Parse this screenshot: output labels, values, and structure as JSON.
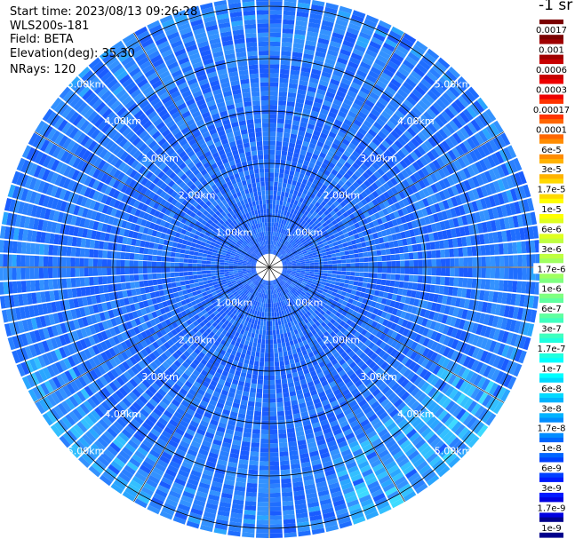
{
  "header": {
    "start_time": "Start time: 2023/08/13 09:26:28",
    "instrument": "WLS200s-181",
    "field": "Field: BETA",
    "elevation": "Elevation(deg): 35.30",
    "nrays": "NRays: 120"
  },
  "colorbar": {
    "unit": "-1 sr",
    "labels": [
      "0.0017",
      "0.001",
      "0.0006",
      "0.0003",
      "0.00017",
      "0.0001",
      "6e-5",
      "3e-5",
      "1.7e-5",
      "1e-5",
      "6e-6",
      "3e-6",
      "1.7e-6",
      "1e-6",
      "6e-7",
      "3e-7",
      "1.7e-7",
      "1e-7",
      "6e-8",
      "3e-8",
      "1.7e-8",
      "1e-8",
      "6e-9",
      "3e-9",
      "1.7e-9",
      "1e-9"
    ],
    "colors": [
      "#7a0000",
      "#a00000",
      "#c80000",
      "#ee0000",
      "#ff3300",
      "#ff6600",
      "#ff8c00",
      "#ffb300",
      "#ffd900",
      "#ffff00",
      "#dfff1f",
      "#bfff40",
      "#9fff60",
      "#7fff80",
      "#5fffa0",
      "#3fffbf",
      "#1fffdf",
      "#00ffff",
      "#00d9ff",
      "#00b3ff",
      "#008cff",
      "#0066ff",
      "#0040ff",
      "#0019ff",
      "#0000e0",
      "#00008c"
    ]
  },
  "range_rings": {
    "labels": [
      "1.00km",
      "2.00km",
      "3.00km",
      "4.00km",
      "5.00km"
    ]
  },
  "scan": {
    "n_rays": 120,
    "n_gates": 60,
    "max_range_km": 6.0,
    "palette": [
      "#1a5cff",
      "#1f6eff",
      "#2a80ff",
      "#3392ff",
      "#2aa6ff",
      "#33c0ff",
      "#3ddbff",
      "#40f0f0"
    ]
  }
}
